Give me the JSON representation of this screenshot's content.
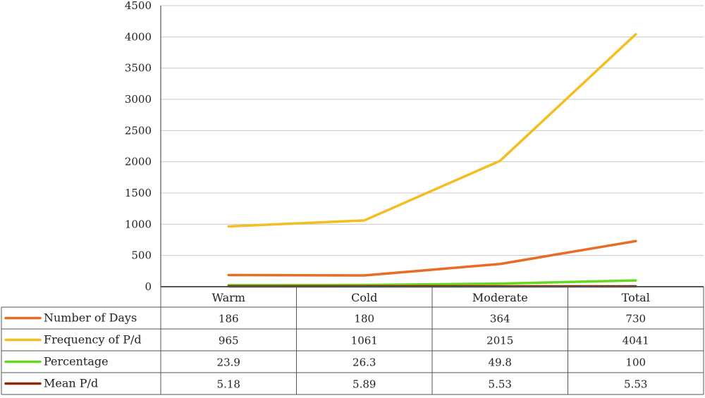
{
  "chart_data": {
    "type": "line",
    "title": "",
    "xlabel": "",
    "ylabel": "",
    "ylim": [
      0,
      4500
    ],
    "yticks": [
      "0",
      "500",
      "1000",
      "1500",
      "2000",
      "2500",
      "3000",
      "3500",
      "4000",
      "4500"
    ],
    "categories": [
      "Warm",
      "Cold",
      "Moderate",
      "Total"
    ],
    "grid": true,
    "legend": "data-table-left",
    "series": [
      {
        "name": "Number of Days",
        "color": "#e96c24",
        "values": [
          186,
          180,
          364,
          730
        ],
        "labels": [
          "186",
          "180",
          "364",
          "730"
        ]
      },
      {
        "name": "Frequency of P/d",
        "color": "#f5bd1f",
        "values": [
          965,
          1061,
          2015,
          4041
        ],
        "labels": [
          "965",
          "1061",
          "2015",
          "4041"
        ]
      },
      {
        "name": "Percentage",
        "color": "#66d91e",
        "values": [
          23.9,
          26.3,
          49.8,
          100
        ],
        "labels": [
          "23.9",
          "26.3",
          "49.8",
          "100"
        ]
      },
      {
        "name": "Mean P/d",
        "color": "#8b2a08",
        "values": [
          5.18,
          5.89,
          5.53,
          5.53
        ],
        "labels": [
          "5.18",
          "5.89",
          "5.53",
          "5.53"
        ]
      }
    ]
  }
}
